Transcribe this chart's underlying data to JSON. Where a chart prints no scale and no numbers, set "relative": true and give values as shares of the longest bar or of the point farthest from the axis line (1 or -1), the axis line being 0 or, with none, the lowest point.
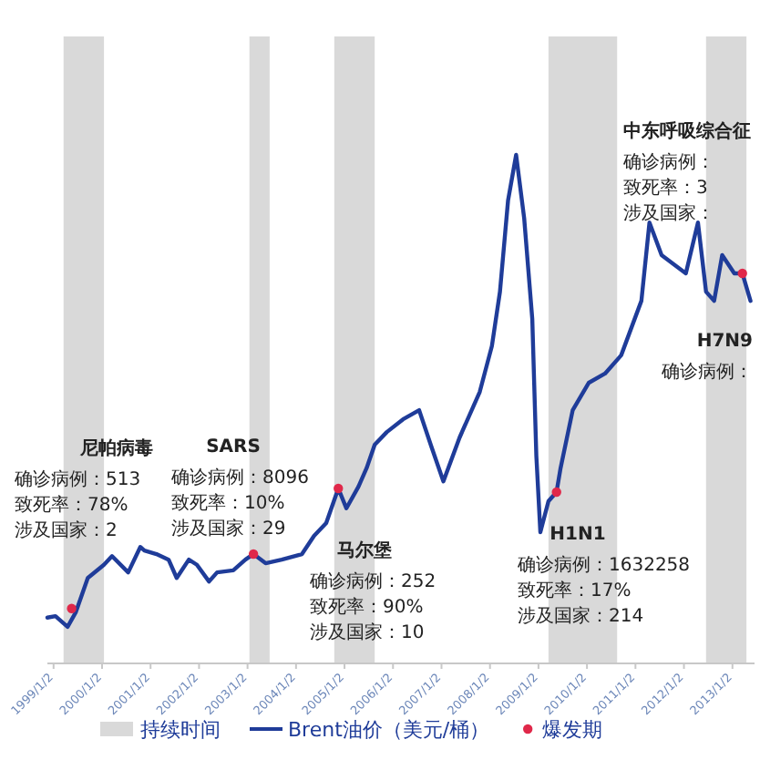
{
  "chart_data": {
    "type": "line",
    "relative": true,
    "xlim": [
      "1998-11",
      "2013-06"
    ],
    "xticks": [
      {
        "value": "1999-01-02",
        "label": "1999/1/2"
      },
      {
        "value": "2000-01-02",
        "label": "2000/1/2"
      },
      {
        "value": "2001-01-02",
        "label": "2001/1/2"
      },
      {
        "value": "2002-01-02",
        "label": "2002/1/2"
      },
      {
        "value": "2003-01-02",
        "label": "2003/1/2"
      },
      {
        "value": "2004-01-02",
        "label": "2004/1/2"
      },
      {
        "value": "2005-01-02",
        "label": "2005/1/2"
      },
      {
        "value": "2006-01-02",
        "label": "2006/1/2"
      },
      {
        "value": "2007-01-02",
        "label": "2007/1/2"
      },
      {
        "value": "2008-01-02",
        "label": "2008/1/2"
      },
      {
        "value": "2009-01-02",
        "label": "2009/1/2"
      },
      {
        "value": "2010-01-02",
        "label": "2010/1/2"
      },
      {
        "value": "2011-01-02",
        "label": "2011/1/2"
      },
      {
        "value": "2012-01-02",
        "label": "2012/1/2"
      },
      {
        "value": "2013-01-02",
        "label": "2013/1/2"
      }
    ],
    "series": [
      {
        "name": "Brent油价（美元/桶）",
        "color": "#1f3c99",
        "x": [
          "1998-11",
          "1999-01",
          "1999-04",
          "1999-06",
          "1999-09",
          "2000-01",
          "2000-03",
          "2000-07",
          "2000-10",
          "2000-11",
          "2001-02",
          "2001-05",
          "2001-07",
          "2001-10",
          "2001-12",
          "2002-03",
          "2002-05",
          "2002-09",
          "2002-12",
          "2003-02",
          "2003-05",
          "2003-09",
          "2004-02",
          "2004-05",
          "2004-08",
          "2004-11",
          "2005-01",
          "2005-04",
          "2005-06",
          "2005-08",
          "2005-11",
          "2006-03",
          "2006-07",
          "2006-10",
          "2007-01",
          "2007-05",
          "2007-10",
          "2008-01",
          "2008-03",
          "2008-05",
          "2008-07",
          "2008-09",
          "2008-11",
          "2008-12",
          "2009-01",
          "2009-03",
          "2009-05",
          "2009-06",
          "2009-09",
          "2010-01",
          "2010-05",
          "2010-09",
          "2011-02",
          "2011-04",
          "2011-07",
          "2011-10",
          "2012-01",
          "2012-04",
          "2012-06",
          "2012-08",
          "2012-10",
          "2013-01",
          "2013-03",
          "2013-05"
        ],
        "values": [
          0.09,
          0.093,
          0.072,
          0.1,
          0.168,
          0.194,
          0.211,
          0.179,
          0.229,
          0.222,
          0.215,
          0.204,
          0.168,
          0.204,
          0.194,
          0.161,
          0.179,
          0.183,
          0.204,
          0.215,
          0.197,
          0.204,
          0.215,
          0.251,
          0.276,
          0.344,
          0.305,
          0.348,
          0.384,
          0.43,
          0.455,
          0.48,
          0.498,
          0.427,
          0.358,
          0.444,
          0.534,
          0.624,
          0.731,
          0.91,
          1.0,
          0.875,
          0.677,
          0.409,
          0.258,
          0.319,
          0.337,
          0.384,
          0.498,
          0.552,
          0.57,
          0.606,
          0.713,
          0.867,
          0.803,
          0.785,
          0.767,
          0.867,
          0.731,
          0.713,
          0.803,
          0.767,
          0.767,
          0.713
        ]
      },
      {
        "name": "爆发期",
        "type": "scatter",
        "color": "#e0284a",
        "x": [
          "1999-05",
          "2003-02",
          "2004-11",
          "2009-05",
          "2013-03"
        ],
        "values": [
          0.108,
          0.215,
          0.344,
          0.337,
          0.767
        ]
      }
    ],
    "bands": [
      {
        "axis": "x",
        "from": "1999-03",
        "to": "2000-01",
        "label": "持续时间",
        "color": "#d9d9d9"
      },
      {
        "axis": "x",
        "from": "2003-01",
        "to": "2003-06",
        "color": "#d9d9d9"
      },
      {
        "axis": "x",
        "from": "2004-10",
        "to": "2005-08",
        "color": "#d9d9d9"
      },
      {
        "axis": "x",
        "from": "2009-03",
        "to": "2010-08",
        "color": "#d9d9d9"
      },
      {
        "axis": "x",
        "from": "2012-06",
        "to": "2013-04",
        "color": "#d9d9d9"
      }
    ],
    "annotations": [
      "尼帕病毒",
      "确诊病例：513",
      "致死率：78%",
      "涉及国家：2",
      "SARS",
      "确诊病例：8096",
      "致死率：10%",
      "涉及国家：29",
      "马尔堡",
      "确诊病例：252",
      "致死率：90%",
      "涉及国家：10",
      "H1N1",
      "确诊病例：1632258",
      "致死率：17%",
      "涉及国家：214",
      "中东呼吸综合征",
      "确诊病例：",
      "致死率：3",
      "涉及国家：",
      "H7N9",
      "确诊病例："
    ],
    "legend": "bottom"
  }
}
